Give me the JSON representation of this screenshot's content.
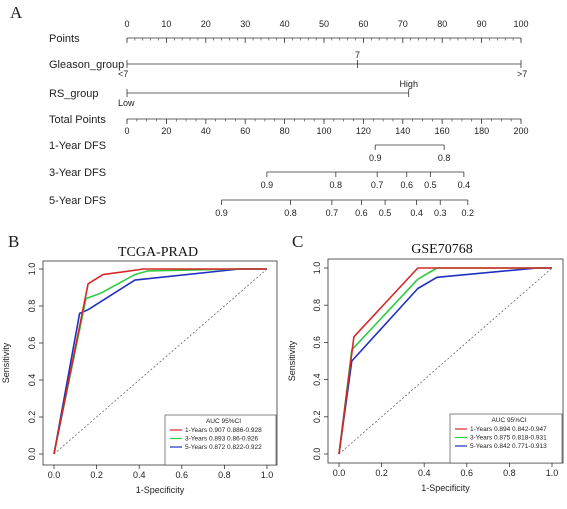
{
  "panel_letters": [
    "A",
    "B",
    "C"
  ],
  "chart_data": [
    {
      "type": "nomogram",
      "panel": "A",
      "rows": [
        {
          "name": "Points",
          "scale_min": 0,
          "scale_max": 100,
          "ticks": [
            {
              "v": 0,
              "label": "0"
            },
            {
              "v": 10,
              "label": "10"
            },
            {
              "v": 20,
              "label": "20"
            },
            {
              "v": 30,
              "label": "30"
            },
            {
              "v": 40,
              "label": "40"
            },
            {
              "v": 50,
              "label": "50"
            },
            {
              "v": 60,
              "label": "60"
            },
            {
              "v": 70,
              "label": "70"
            },
            {
              "v": 80,
              "label": "80"
            },
            {
              "v": 90,
              "label": "90"
            },
            {
              "v": 100,
              "label": "100"
            }
          ],
          "minor_step": 2,
          "labels_above": true
        },
        {
          "name": "Gleason_group",
          "scale_min": 0,
          "scale_max": 100,
          "line_from": 0,
          "line_to": 100,
          "ticks": [
            {
              "v": 0,
              "label": "<7",
              "pos": "below"
            },
            {
              "v": 58.5,
              "label": "7",
              "pos": "above"
            },
            {
              "v": 100,
              "label": ">7",
              "pos": "below"
            }
          ]
        },
        {
          "name": "RS_group",
          "scale_min": 0,
          "scale_max": 100,
          "line_from": 0,
          "line_to": 71.5,
          "ticks": [
            {
              "v": 0,
              "label": "Low",
              "pos": "below"
            },
            {
              "v": 71.5,
              "label": "High",
              "pos": "above"
            }
          ]
        },
        {
          "name": "Total Points",
          "scale_min": 0,
          "scale_max": 200,
          "ticks": [
            {
              "v": 0,
              "label": "0"
            },
            {
              "v": 20,
              "label": "20"
            },
            {
              "v": 40,
              "label": "40"
            },
            {
              "v": 60,
              "label": "60"
            },
            {
              "v": 80,
              "label": "80"
            },
            {
              "v": 100,
              "label": "100"
            },
            {
              "v": 120,
              "label": "120"
            },
            {
              "v": 140,
              "label": "140"
            },
            {
              "v": 160,
              "label": "160"
            },
            {
              "v": 180,
              "label": "180"
            },
            {
              "v": 200,
              "label": "200"
            }
          ],
          "minor_step": 5,
          "labels_below": true
        },
        {
          "name": "1-Year DFS",
          "total_points_range": [
            0,
            200
          ],
          "line_from": 126,
          "line_to": 161,
          "ticks": [
            {
              "v": 126,
              "label": "0.9"
            },
            {
              "v": 161,
              "label": "0.8"
            }
          ]
        },
        {
          "name": "3-Year DFS",
          "total_points_range": [
            0,
            200
          ],
          "line_from": 71,
          "line_to": 171,
          "ticks": [
            {
              "v": 71,
              "label": "0.9"
            },
            {
              "v": 106,
              "label": "0.8"
            },
            {
              "v": 127,
              "label": "0.7"
            },
            {
              "v": 142,
              "label": "0.6"
            },
            {
              "v": 154,
              "label": "0.5"
            },
            {
              "v": 171,
              "label": "0.4"
            }
          ]
        },
        {
          "name": "5-Year DFS",
          "total_points_range": [
            0,
            200
          ],
          "line_from": 48,
          "line_to": 173,
          "ticks": [
            {
              "v": 48,
              "label": "0.9"
            },
            {
              "v": 83,
              "label": "0.8"
            },
            {
              "v": 104,
              "label": "0.7"
            },
            {
              "v": 119,
              "label": "0.6"
            },
            {
              "v": 131,
              "label": "0.5"
            },
            {
              "v": 147,
              "label": "0.4"
            },
            {
              "v": 159,
              "label": "0.3"
            },
            {
              "v": 173,
              "label": "0.2"
            }
          ]
        }
      ]
    },
    {
      "type": "line",
      "panel": "B",
      "title": "TCGA-PRAD",
      "xlabel": "1-Specificity",
      "ylabel": "Sensitivity",
      "xlim": [
        0,
        1
      ],
      "ylim": [
        0,
        1
      ],
      "xticks": [
        "0.0",
        "0.2",
        "0.4",
        "0.6",
        "0.8",
        "1.0"
      ],
      "yticks": [
        "0.0",
        "0.2",
        "0.4",
        "0.6",
        "0.8",
        "1.0"
      ],
      "diagonal_reference": true,
      "legend_title": "AUC 95%CI",
      "legend_position": "bottom-right",
      "series": [
        {
          "name": "1-Years 0.907 0.886-0.928",
          "color": "#d62728",
          "x": [
            0,
            0.16,
            0.23,
            0.42,
            1.0
          ],
          "y": [
            0,
            0.92,
            0.97,
            1.0,
            1.0
          ]
        },
        {
          "name": "3-Years 0.893 0.86-0.926",
          "color": "#2ecc40",
          "x": [
            0,
            0.15,
            0.22,
            0.38,
            0.44,
            0.87,
            1.0
          ],
          "y": [
            0,
            0.84,
            0.87,
            0.97,
            0.99,
            1.0,
            1.0
          ]
        },
        {
          "name": "5-Years 0.872 0.822-0.922",
          "color": "#1f2fbf",
          "x": [
            0,
            0.12,
            0.16,
            0.38,
            0.87,
            1.0
          ],
          "y": [
            0,
            0.76,
            0.78,
            0.94,
            1.0,
            1.0
          ]
        }
      ]
    },
    {
      "type": "line",
      "panel": "C",
      "title": "GSE70768",
      "xlabel": "1-Specificity",
      "ylabel": "Sensitivity",
      "xlim": [
        0,
        1
      ],
      "ylim": [
        0,
        1
      ],
      "xticks": [
        "0.0",
        "0.2",
        "0.4",
        "0.6",
        "0.8",
        "1.0"
      ],
      "yticks": [
        "0.0",
        "0.2",
        "0.4",
        "0.6",
        "0.8",
        "1.0"
      ],
      "diagonal_reference": true,
      "legend_title": "AUC 95%CI",
      "legend_position": "bottom-right",
      "series": [
        {
          "name": "1-Years 0.894 0.842-0.947",
          "color": "#d62728",
          "x": [
            0,
            0.07,
            0.37,
            1.0
          ],
          "y": [
            0,
            0.63,
            1.0,
            1.0
          ]
        },
        {
          "name": "3-Years 0.875 0.818-0.931",
          "color": "#2ecc40",
          "x": [
            0,
            0.06,
            0.37,
            0.46,
            1.0
          ],
          "y": [
            0,
            0.56,
            0.94,
            1.0,
            1.0
          ]
        },
        {
          "name": "5-Years 0.842 0.771-0.913",
          "color": "#1f2fbf",
          "x": [
            0,
            0.06,
            0.37,
            0.46,
            0.93,
            1.0
          ],
          "y": [
            0,
            0.5,
            0.89,
            0.95,
            1.0,
            1.0
          ]
        }
      ]
    }
  ]
}
